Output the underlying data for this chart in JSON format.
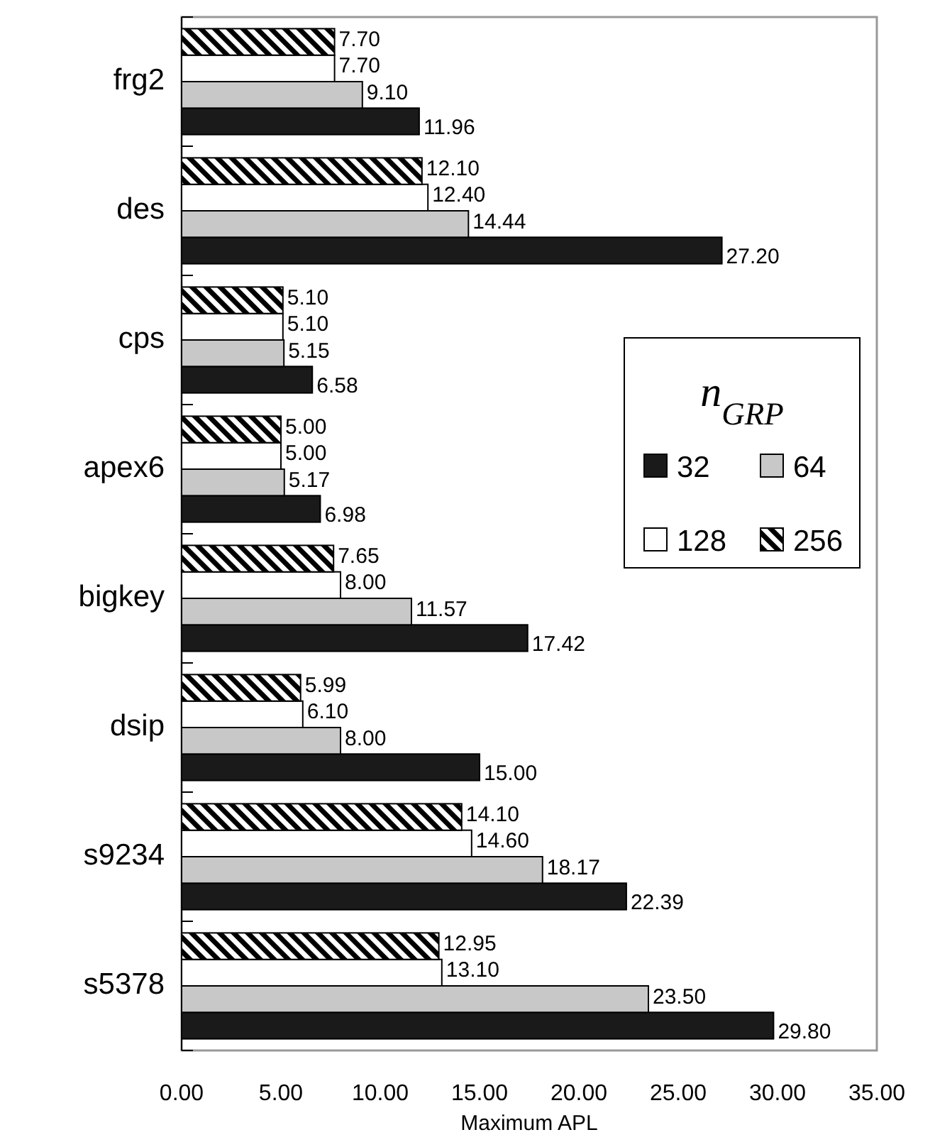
{
  "chart_data": {
    "type": "bar",
    "orientation": "horizontal",
    "xlabel": "Maximum APL",
    "legend_title": "n$_{GRP}$",
    "legend": "right",
    "categories": [
      "frg2",
      "des",
      "cps",
      "apex6",
      "bigkey",
      "dsip",
      "s9234",
      "s5378"
    ],
    "series": [
      {
        "name": "32",
        "color": "#1a1a1a",
        "values": [
          11.96,
          27.2,
          6.58,
          6.98,
          17.42,
          15.0,
          22.39,
          29.8
        ],
        "value_labels": [
          "11.96",
          "27.20",
          "6.58",
          "6.98",
          "17.42",
          "15.00",
          "22.39",
          "29.80"
        ]
      },
      {
        "name": "64",
        "color": "#c8c8c8",
        "values": [
          9.1,
          14.44,
          5.15,
          5.17,
          11.57,
          8.0,
          18.17,
          23.5
        ],
        "value_labels": [
          "9.10",
          "14.44",
          "5.15",
          "5.17",
          "11.57",
          "8.00",
          "18.17",
          "23.50"
        ]
      },
      {
        "name": "128",
        "color": "#ffffff",
        "values": [
          7.7,
          12.4,
          5.1,
          5.0,
          8.0,
          6.1,
          14.6,
          13.1
        ],
        "value_labels": [
          "7.70",
          "12.40",
          "5.10",
          "5.00",
          "8.00",
          "6.10",
          "14.60",
          "13.10"
        ]
      },
      {
        "name": "256",
        "color": "#000000",
        "values": [
          7.7,
          12.1,
          5.1,
          5.0,
          7.65,
          5.99,
          14.1,
          12.95
        ],
        "value_labels": [
          "7.70",
          "12.10",
          "5.10",
          "5.00",
          "7.65",
          "5.99",
          "14.10",
          "12.95"
        ]
      }
    ],
    "xlim": [
      0,
      35
    ],
    "xticks": [
      {
        "value": 0,
        "label": "0.00"
      },
      {
        "value": 5,
        "label": "5.00"
      },
      {
        "value": 10,
        "label": "10.00"
      },
      {
        "value": 15,
        "label": "15.00"
      },
      {
        "value": 20,
        "label": "20.00"
      },
      {
        "value": 25,
        "label": "25.00"
      },
      {
        "value": 30,
        "label": "30.00"
      },
      {
        "value": 35,
        "label": "35.00"
      }
    ],
    "grid": false
  }
}
